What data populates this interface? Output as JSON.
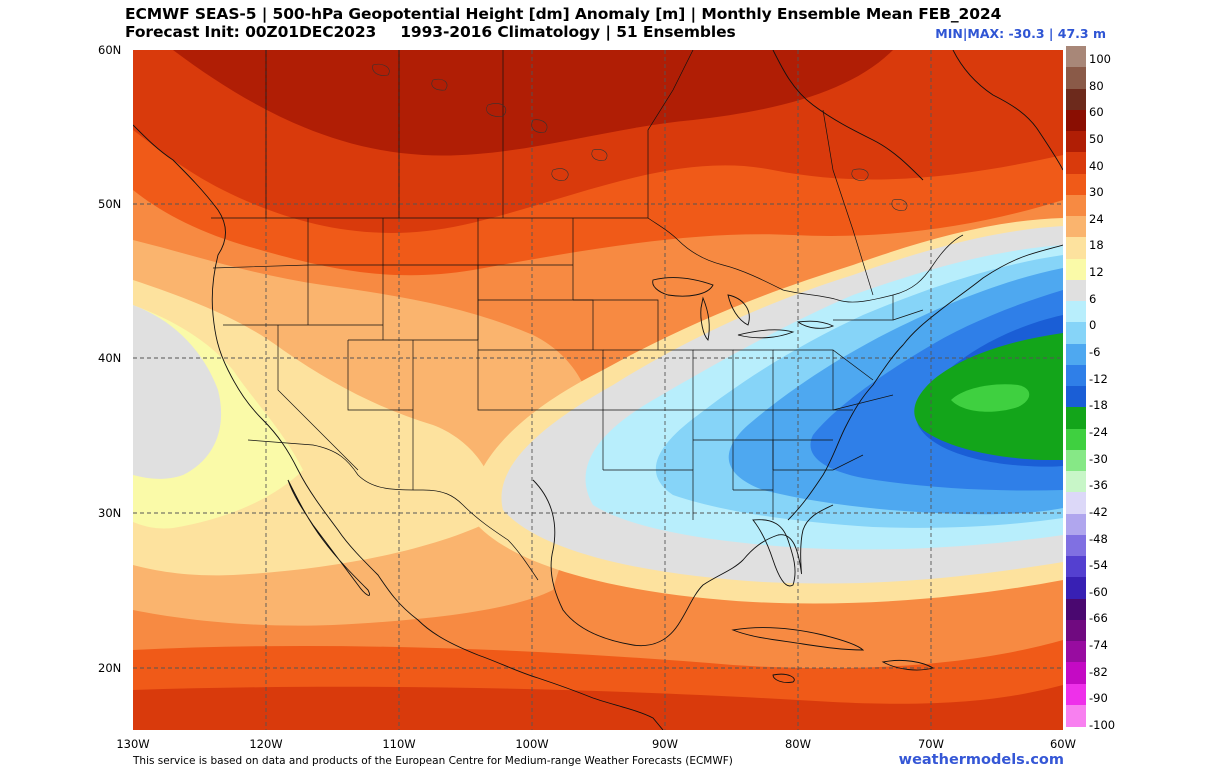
{
  "header": {
    "title_line1": "ECMWF SEAS-5 | 500-hPa Geopotential Height [dm] Anomaly [m] | Monthly Ensemble Mean FEB_2024",
    "title_line2_left": "Forecast Init: 00Z01DEC2023",
    "title_line2_right": "1993-2016 Climatology | 51 Ensembles",
    "minmax": "MIN|MAX: -30.3 | 47.3 m"
  },
  "axes": {
    "lat_labels": [
      "60N",
      "50N",
      "40N",
      "30N",
      "20N"
    ],
    "lon_labels": [
      "130W",
      "120W",
      "110W",
      "100W",
      "90W",
      "80W",
      "70W",
      "60W"
    ]
  },
  "legend": {
    "labels": [
      "100",
      "80",
      "60",
      "50",
      "40",
      "30",
      "24",
      "18",
      "12",
      "6",
      "0",
      "-6",
      "-12",
      "-18",
      "-24",
      "-30",
      "-36",
      "-42",
      "-48",
      "-54",
      "-60",
      "-66",
      "-74",
      "-82",
      "-90",
      "-100"
    ],
    "colors": [
      "#a88778",
      "#8a5a48",
      "#6d2a1c",
      "#8a0e02",
      "#b01e05",
      "#d93a0c",
      "#f05a18",
      "#f78a42",
      "#fab46e",
      "#fde29e",
      "#fafaa8",
      "#e0e0e0",
      "#b8eefc",
      "#86d4f8",
      "#4ea8f0",
      "#2f7fe8",
      "#1a5ed6",
      "#13a51a",
      "#3fd040",
      "#86e886",
      "#c8f6c8",
      "#dcd8f8",
      "#b0a6ee",
      "#8070e2",
      "#5440d0",
      "#3820b4",
      "#4a0870",
      "#700a80",
      "#980ca0",
      "#c40ac4",
      "#ee30ea",
      "#f880f0"
    ]
  },
  "map": {
    "lon_range": [
      -130,
      -60
    ],
    "lat_range": [
      16,
      60
    ],
    "anomaly_extremes": {
      "min": -30.3,
      "max": 47.3,
      "unit": "m"
    }
  },
  "footer": {
    "credit": "This service is based on data and products of the European Centre for Medium-range Weather Forecasts (ECMWF)",
    "brand": "weathermodels.com"
  }
}
